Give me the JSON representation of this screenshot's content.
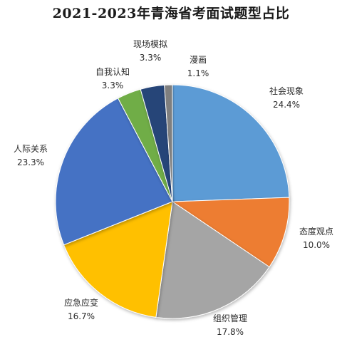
{
  "chart_data": {
    "type": "pie",
    "title": "2021-2023年青海省考面试题型占比",
    "slices": [
      {
        "label": "社会现象",
        "pct_text": "24.4%",
        "value": 24.4,
        "color": "#5b9bd5"
      },
      {
        "label": "态度观点",
        "pct_text": "10.0%",
        "value": 10.0,
        "color": "#ed7d31"
      },
      {
        "label": "组织管理",
        "pct_text": "17.8%",
        "value": 17.8,
        "color": "#a5a5a5"
      },
      {
        "label": "应急应变",
        "pct_text": "16.7%",
        "value": 16.7,
        "color": "#ffc000"
      },
      {
        "label": "人际关系",
        "pct_text": "23.3%",
        "value": 23.3,
        "color": "#4472c4"
      },
      {
        "label": "自我认知",
        "pct_text": "3.3%",
        "value": 3.3,
        "color": "#70ad47"
      },
      {
        "label": "现场模拟",
        "pct_text": "3.3%",
        "value": 3.3,
        "color": "#264478"
      },
      {
        "label": "漫画",
        "pct_text": "1.1%",
        "value": 1.1,
        "color": "#7f7f7f"
      }
    ],
    "start_direction": "top",
    "direction": "clockwise"
  }
}
